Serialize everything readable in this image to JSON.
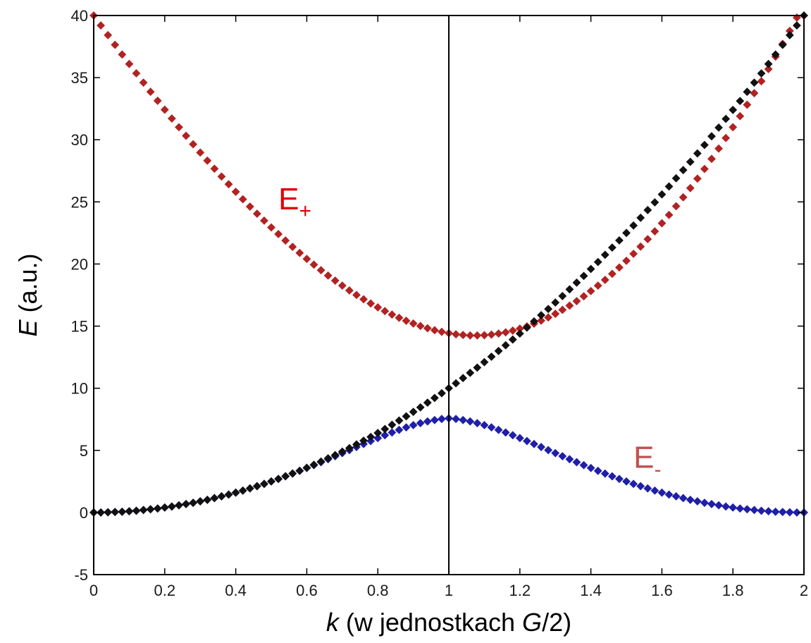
{
  "chart_data": {
    "type": "scatter",
    "title": "",
    "xlabel": {
      "italic": "k",
      "mid": " (w jednostkach ",
      "italic2": "G",
      "tail": "/2)"
    },
    "ylabel": {
      "italic": "E",
      "tail": " (a.u.)"
    },
    "xlim": [
      0,
      2
    ],
    "ylim": [
      -5,
      40
    ],
    "xticks": [
      "0",
      "0.2",
      "0.4",
      "0.6",
      "0.8",
      "1",
      "1.2",
      "1.4",
      "1.6",
      "1.8",
      "2"
    ],
    "yticks": [
      "-5",
      "0",
      "5",
      "10",
      "15",
      "20",
      "25",
      "30",
      "35",
      "40"
    ],
    "grid": false,
    "vline_x": 1,
    "annotations": {
      "e_plus": {
        "base": "E",
        "sub": "+",
        "color": "#e00000"
      },
      "e_minus": {
        "base": "E",
        "sub": "-",
        "color": "#c0504d"
      }
    },
    "series": [
      {
        "key": "upper",
        "color": "#b22222",
        "marker": "diamond",
        "x": [
          0.0,
          0.02,
          0.04,
          0.06,
          0.08,
          0.1,
          0.12,
          0.14,
          0.16,
          0.18,
          0.2,
          0.22,
          0.24,
          0.26,
          0.28,
          0.3,
          0.32,
          0.34,
          0.36,
          0.38,
          0.4,
          0.42,
          0.44,
          0.46,
          0.48,
          0.5,
          0.52,
          0.54,
          0.56,
          0.58,
          0.6,
          0.62,
          0.64,
          0.66,
          0.68,
          0.7,
          0.72,
          0.74,
          0.76,
          0.78,
          0.8,
          0.82,
          0.84,
          0.86,
          0.88,
          0.9,
          0.92,
          0.94,
          0.96,
          0.98,
          1.0,
          1.02,
          1.04,
          1.06,
          1.08,
          1.1,
          1.12,
          1.14,
          1.16,
          1.18,
          1.2,
          1.22,
          1.24,
          1.26,
          1.28,
          1.3,
          1.32,
          1.34,
          1.36,
          1.38,
          1.4,
          1.42,
          1.44,
          1.46,
          1.48,
          1.5,
          1.52,
          1.54,
          1.56,
          1.58,
          1.6,
          1.62,
          1.64,
          1.66,
          1.68,
          1.7,
          1.72,
          1.74,
          1.76,
          1.78,
          1.8,
          1.82,
          1.84,
          1.86,
          1.88,
          1.9,
          1.92,
          1.94,
          1.96,
          1.98,
          2.0
        ],
        "y": [
          40.0,
          39.2,
          38.42,
          37.64,
          36.86,
          36.1,
          35.35,
          34.6,
          33.86,
          33.14,
          32.42,
          31.71,
          31.01,
          30.32,
          29.64,
          28.97,
          28.32,
          27.67,
          27.04,
          26.42,
          25.81,
          25.21,
          24.62,
          24.05,
          23.49,
          22.94,
          22.41,
          21.89,
          21.38,
          20.89,
          20.41,
          19.95,
          19.5,
          19.07,
          18.66,
          18.26,
          17.87,
          17.51,
          17.16,
          16.82,
          16.51,
          16.21,
          15.93,
          15.67,
          15.43,
          15.21,
          15.01,
          14.83,
          14.67,
          14.54,
          14.43,
          14.34,
          14.29,
          14.25,
          14.25,
          14.27,
          14.32,
          14.4,
          14.5,
          14.64,
          14.8,
          14.98,
          15.2,
          15.44,
          15.7,
          15.99,
          16.31,
          16.65,
          17.01,
          17.4,
          17.82,
          18.26,
          18.72,
          19.21,
          19.72,
          20.26,
          20.82,
          21.4,
          22.0,
          22.63,
          23.28,
          23.95,
          24.65,
          25.37,
          26.11,
          26.87,
          27.65,
          28.46,
          29.29,
          30.14,
          31.01,
          31.9,
          32.82,
          33.75,
          34.71,
          35.69,
          36.69,
          37.72,
          38.76,
          39.83,
          40.0
        ]
      },
      {
        "key": "lower",
        "color": "#1f1fa8",
        "marker": "diamond",
        "x": [
          0.0,
          0.02,
          0.04,
          0.06,
          0.08,
          0.1,
          0.12,
          0.14,
          0.16,
          0.18,
          0.2,
          0.22,
          0.24,
          0.26,
          0.28,
          0.3,
          0.32,
          0.34,
          0.36,
          0.38,
          0.4,
          0.42,
          0.44,
          0.46,
          0.48,
          0.5,
          0.52,
          0.54,
          0.56,
          0.58,
          0.6,
          0.62,
          0.64,
          0.66,
          0.68,
          0.7,
          0.72,
          0.74,
          0.76,
          0.78,
          0.8,
          0.82,
          0.84,
          0.86,
          0.88,
          0.9,
          0.92,
          0.94,
          0.96,
          0.98,
          1.0,
          1.02,
          1.04,
          1.06,
          1.08,
          1.1,
          1.12,
          1.14,
          1.16,
          1.18,
          1.2,
          1.22,
          1.24,
          1.26,
          1.28,
          1.3,
          1.32,
          1.34,
          1.36,
          1.38,
          1.4,
          1.42,
          1.44,
          1.46,
          1.48,
          1.5,
          1.52,
          1.54,
          1.56,
          1.58,
          1.6,
          1.62,
          1.64,
          1.66,
          1.68,
          1.7,
          1.72,
          1.74,
          1.76,
          1.78,
          1.8,
          1.82,
          1.84,
          1.86,
          1.88,
          1.9,
          1.92,
          1.94,
          1.96,
          1.98,
          2.0
        ],
        "y": [
          0.0,
          0.0,
          0.02,
          0.04,
          0.06,
          0.1,
          0.14,
          0.2,
          0.26,
          0.32,
          0.4,
          0.48,
          0.58,
          0.68,
          0.78,
          0.9,
          1.02,
          1.16,
          1.3,
          1.44,
          1.6,
          1.76,
          1.94,
          2.12,
          2.3,
          2.5,
          2.7,
          2.91,
          3.13,
          3.35,
          3.58,
          3.81,
          4.05,
          4.29,
          4.53,
          4.78,
          5.02,
          5.27,
          5.51,
          5.75,
          5.99,
          6.22,
          6.44,
          6.65,
          6.85,
          7.03,
          7.19,
          7.33,
          7.44,
          7.53,
          7.58,
          7.53,
          7.44,
          7.33,
          7.19,
          7.03,
          6.85,
          6.65,
          6.44,
          6.22,
          5.99,
          5.75,
          5.51,
          5.27,
          5.02,
          4.78,
          4.53,
          4.29,
          4.05,
          3.81,
          3.58,
          3.35,
          3.13,
          2.91,
          2.7,
          2.5,
          2.3,
          2.12,
          1.94,
          1.76,
          1.6,
          1.44,
          1.3,
          1.16,
          1.02,
          0.9,
          0.78,
          0.68,
          0.58,
          0.48,
          0.4,
          0.32,
          0.26,
          0.2,
          0.14,
          0.1,
          0.06,
          0.04,
          0.02,
          0.0,
          0.0
        ]
      },
      {
        "key": "free",
        "color": "#111111",
        "marker": "diamond",
        "x": [
          0.0,
          0.02,
          0.04,
          0.06,
          0.08,
          0.1,
          0.12,
          0.14,
          0.16,
          0.18,
          0.2,
          0.22,
          0.24,
          0.26,
          0.28,
          0.3,
          0.32,
          0.34,
          0.36,
          0.38,
          0.4,
          0.42,
          0.44,
          0.46,
          0.48,
          0.5,
          0.52,
          0.54,
          0.56,
          0.58,
          0.6,
          0.62,
          0.64,
          0.66,
          0.68,
          0.7,
          0.72,
          0.74,
          0.76,
          0.78,
          0.8,
          0.82,
          0.84,
          0.86,
          0.88,
          0.9,
          0.92,
          0.94,
          0.96,
          0.98,
          1.0,
          1.02,
          1.04,
          1.06,
          1.08,
          1.1,
          1.12,
          1.14,
          1.16,
          1.18,
          1.2,
          1.22,
          1.24,
          1.26,
          1.28,
          1.3,
          1.32,
          1.34,
          1.36,
          1.38,
          1.4,
          1.42,
          1.44,
          1.46,
          1.48,
          1.5,
          1.52,
          1.54,
          1.56,
          1.58,
          1.6,
          1.62,
          1.64,
          1.66,
          1.68,
          1.7,
          1.72,
          1.74,
          1.76,
          1.78,
          1.8,
          1.82,
          1.84,
          1.86,
          1.88,
          1.9,
          1.92,
          1.94,
          1.96,
          1.98,
          2.0
        ],
        "y": [
          0.0,
          0.0,
          0.02,
          0.04,
          0.06,
          0.1,
          0.14,
          0.2,
          0.26,
          0.32,
          0.4,
          0.48,
          0.58,
          0.68,
          0.78,
          0.9,
          1.02,
          1.16,
          1.3,
          1.44,
          1.6,
          1.76,
          1.94,
          2.12,
          2.3,
          2.5,
          2.7,
          2.92,
          3.14,
          3.36,
          3.6,
          3.84,
          4.1,
          4.36,
          4.62,
          4.9,
          5.18,
          5.48,
          5.78,
          6.08,
          6.4,
          6.72,
          7.06,
          7.4,
          7.74,
          8.1,
          8.46,
          8.84,
          9.22,
          9.6,
          10.0,
          10.4,
          10.82,
          11.24,
          11.66,
          12.1,
          12.54,
          13.0,
          13.46,
          13.92,
          14.4,
          14.88,
          15.38,
          15.88,
          16.38,
          16.9,
          17.42,
          17.96,
          18.5,
          19.04,
          19.6,
          20.16,
          20.74,
          21.32,
          21.9,
          22.5,
          23.1,
          23.72,
          24.34,
          24.96,
          25.6,
          26.24,
          26.9,
          27.56,
          28.22,
          28.9,
          29.58,
          30.28,
          30.98,
          31.68,
          32.4,
          33.12,
          33.86,
          34.6,
          35.34,
          36.1,
          36.86,
          37.64,
          38.42,
          39.2,
          40.0
        ]
      }
    ]
  }
}
